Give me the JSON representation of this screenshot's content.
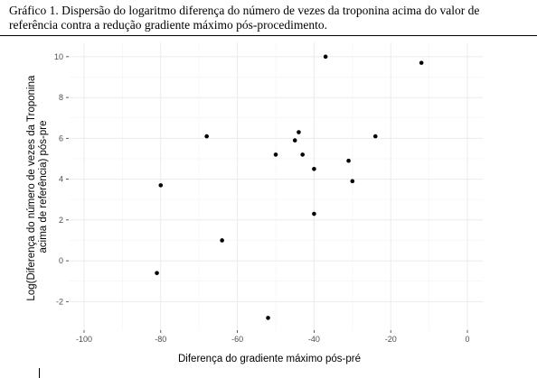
{
  "caption": {
    "line1": "Gráfico 1. Dispersão do logaritmo diferença do número de vezes da troponina acima do valor de",
    "line2": "referência contra a redução gradiente máximo pós-procedimento."
  },
  "chart_data": {
    "type": "scatter",
    "title": "",
    "xlabel": "Diferença do gradiente máximo pós-pré",
    "ylabel_lines": [
      "Log(Diferença do número de vezes da Troponina",
      "acima de referência) pós-pre"
    ],
    "xlim": [
      -104,
      4
    ],
    "ylim": [
      -3.4,
      10.7
    ],
    "xticks": [
      -100,
      -80,
      -60,
      -40,
      -20,
      0
    ],
    "yticks": [
      -2,
      0,
      2,
      4,
      6,
      8,
      10
    ],
    "xtick_labels": [
      "-100",
      "-80",
      "-60",
      "-40",
      "-20",
      "0"
    ],
    "ytick_labels": [
      "-2",
      "0",
      "2",
      "4",
      "6",
      "8",
      "10"
    ],
    "grid": true,
    "legend": "none",
    "point_color": "#000000",
    "grid_major_color": "#ebebeb",
    "grid_minor_color": "#f4f4f4",
    "points": [
      {
        "x": -81,
        "y": -0.6
      },
      {
        "x": -80,
        "y": 3.7
      },
      {
        "x": -68,
        "y": 6.1
      },
      {
        "x": -64,
        "y": 1.0
      },
      {
        "x": -52,
        "y": -2.8
      },
      {
        "x": -50,
        "y": 5.2
      },
      {
        "x": -45,
        "y": 5.9
      },
      {
        "x": -44,
        "y": 6.3
      },
      {
        "x": -43,
        "y": 5.2
      },
      {
        "x": -40,
        "y": 4.5
      },
      {
        "x": -40,
        "y": 2.3
      },
      {
        "x": -37,
        "y": 10.0
      },
      {
        "x": -31,
        "y": 4.9
      },
      {
        "x": -30,
        "y": 3.9
      },
      {
        "x": -24,
        "y": 6.1
      },
      {
        "x": -12,
        "y": 9.7
      }
    ]
  }
}
